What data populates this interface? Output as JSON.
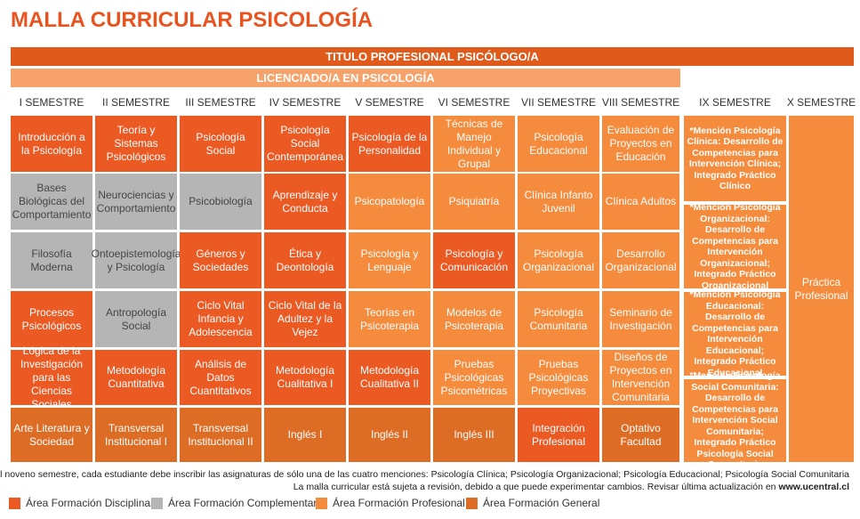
{
  "title": "MALLA CURRICULAR PSICOLOGÍA",
  "band_titulo": "TITULO PROFESIONAL PSICÓLOGO/A",
  "band_licenciado": "LICENCIADO/A EN PSICOLOGÍA",
  "semesters": [
    "I SEMESTRE",
    "II SEMESTRE",
    "III SEMESTRE",
    "IV SEMESTRE",
    "V SEMESTRE",
    "VI SEMESTRE",
    "VII SEMESTRE",
    "VIII SEMESTRE",
    "IX SEMESTRE",
    "X SEMESTRE"
  ],
  "grid": [
    [
      {
        "text": "Introducción a la Psicología",
        "area": "disc"
      },
      {
        "text": "Bases Biológicas del Comportamiento",
        "area": "comp"
      },
      {
        "text": "Filosofía Moderna",
        "area": "comp"
      },
      {
        "text": "Procesos Psicológicos",
        "area": "disc"
      },
      {
        "text": "Lógica de la Investigación para las Ciencias Sociales",
        "area": "disc"
      },
      {
        "text": "Arte Literatura y Sociedad",
        "area": "gen"
      }
    ],
    [
      {
        "text": "Teoría y Sistemas Psicológicos",
        "area": "disc"
      },
      {
        "text": "Neurociencias y Comportamiento",
        "area": "comp"
      },
      {
        "text": "Ontoepistemología y Psicología",
        "area": "comp"
      },
      {
        "text": "Antropología Social",
        "area": "comp"
      },
      {
        "text": "Metodología Cuantitativa",
        "area": "disc"
      },
      {
        "text": "Transversal Institucional I",
        "area": "gen"
      }
    ],
    [
      {
        "text": "Psicología Social",
        "area": "disc"
      },
      {
        "text": "Psicobiología",
        "area": "comp"
      },
      {
        "text": "Géneros y Sociedades",
        "area": "disc"
      },
      {
        "text": "Ciclo Vital Infancia y Adolescencia",
        "area": "disc"
      },
      {
        "text": "Análisis de Datos Cuantitativos",
        "area": "disc"
      },
      {
        "text": "Transversal Institucional II",
        "area": "gen"
      }
    ],
    [
      {
        "text": "Psicología Social Contemporánea",
        "area": "disc"
      },
      {
        "text": "Aprendizaje y Conducta",
        "area": "disc"
      },
      {
        "text": "Ética y Deontología",
        "area": "disc"
      },
      {
        "text": "Ciclo Vital de la Adultez y la Vejez",
        "area": "disc"
      },
      {
        "text": "Metodología Cualitativa I",
        "area": "disc"
      },
      {
        "text": "Inglés I",
        "area": "gen"
      }
    ],
    [
      {
        "text": "Psicología de la Personalidad",
        "area": "disc"
      },
      {
        "text": "Psicopatología",
        "area": "prof"
      },
      {
        "text": "Psicología y Lenguaje",
        "area": "prof"
      },
      {
        "text": "Teorías en Psicoterapia",
        "area": "prof"
      },
      {
        "text": "Metodología Cualitativa II",
        "area": "disc"
      },
      {
        "text": "Inglés II",
        "area": "gen"
      }
    ],
    [
      {
        "text": "Técnicas de Manejo Individual y Grupal",
        "area": "prof"
      },
      {
        "text": "Psiquiatría",
        "area": "prof"
      },
      {
        "text": "Psicología y Comunicación",
        "area": "disc"
      },
      {
        "text": "Modelos de Psicoterapia",
        "area": "prof"
      },
      {
        "text": "Pruebas Psicológicas Psicométricas",
        "area": "prof"
      },
      {
        "text": "Inglés III",
        "area": "gen"
      }
    ],
    [
      {
        "text": "Psicología Educacional",
        "area": "prof"
      },
      {
        "text": "Clínica Infanto Juvenil",
        "area": "prof"
      },
      {
        "text": "Psicología Organizacional",
        "area": "prof"
      },
      {
        "text": "Psicología Comunitaria",
        "area": "prof"
      },
      {
        "text": "Pruebas Psicológicas Proyectivas",
        "area": "prof"
      },
      {
        "text": "Integración Profesional",
        "area": "disc"
      }
    ],
    [
      {
        "text": "Evaluación de Proyectos en Educación",
        "area": "prof"
      },
      {
        "text": "Clínica Adultos",
        "area": "prof"
      },
      {
        "text": "Desarrollo Organizacional",
        "area": "prof"
      },
      {
        "text": "Seminario de Investigación",
        "area": "prof"
      },
      {
        "text": "Diseños de Proyectos en Intervención Comunitaria",
        "area": "prof"
      },
      {
        "text": "Optativo Facultad",
        "area": "gen"
      }
    ]
  ],
  "mentions": [
    "*Mención Psicología Clínica: Desarrollo de Competencias para Intervención Clínica; Integrado Práctico Clínico",
    "*Mención Psicología Organizacional: Desarrollo de Competencias para Intervención Organizacional; Integrado Práctico Organizacional",
    "*Mención Psicología Educacional: Desarrollo de Competencias para Intervención Educacional; Integrado Práctico Educacional",
    "*Mención Psicología Social Comunitaria: Desarrollo de Competencias para Intervención Social Comunitaria; Integrado Práctico Psicología Social Comunitaria"
  ],
  "practica": "Práctica Profesional",
  "footnote1": "*Al noveno semestre, cada estudiante debe inscribir las asignaturas de sólo una de las cuatro menciones: Psicología Clínica; Psicología Organizacional; Psicología Educacional; Psicología Social Comunitaria",
  "footnote2_text": "La malla curricular está sujeta a revisión, debido a que puede experimentar cambios. Revisar última actualización en",
  "footnote2_link": "www.ucentral.cl",
  "legend": [
    {
      "label": "Área Formación Disciplinar",
      "color": "#ec5a24"
    },
    {
      "label": "Área Formación Complementaria",
      "color": "#b5b5b5"
    },
    {
      "label": "Área Formación Profesional",
      "color": "#f58b3c"
    },
    {
      "label": "Área Formación General",
      "color": "#dd6c25"
    }
  ]
}
